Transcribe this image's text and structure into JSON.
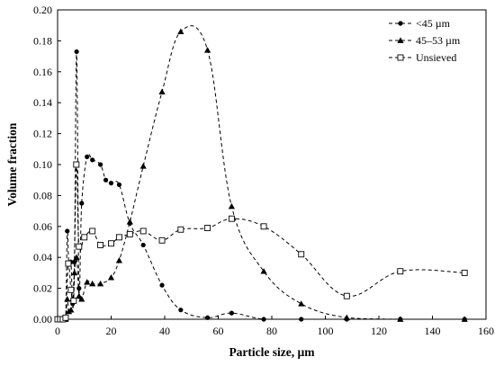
{
  "chart_data": {
    "type": "line",
    "xlabel": "Particle size, µm",
    "ylabel": "Volume fraction",
    "xlim": [
      0,
      160
    ],
    "ylim": [
      0,
      0.2
    ],
    "xticks": [
      0,
      20,
      40,
      60,
      80,
      100,
      120,
      140,
      160
    ],
    "yticks": [
      0.0,
      0.02,
      0.04,
      0.06,
      0.08,
      0.1,
      0.12,
      0.14,
      0.16,
      0.18,
      0.2
    ],
    "xtick_labels": [
      "0",
      "20",
      "40",
      "60",
      "80",
      "100",
      "120",
      "140",
      "160"
    ],
    "ytick_labels": [
      "0.00",
      "0.02",
      "0.04",
      "0.06",
      "0.08",
      "0.10",
      "0.12",
      "0.14",
      "0.16",
      "0.18",
      "0.20"
    ],
    "legend_position": "top-right",
    "series": [
      {
        "name": "<45 µm",
        "marker": "circle",
        "x": [
          0,
          1,
          2,
          3,
          3.6,
          4.2,
          5,
          5.6,
          6.3,
          7.1,
          8,
          9,
          11,
          13,
          16,
          18,
          20,
          23,
          27,
          32,
          39,
          46,
          56,
          65,
          77,
          91,
          108,
          128,
          152
        ],
        "y": [
          0,
          0,
          0,
          0,
          0.057,
          0.036,
          0.037,
          0.01,
          0.037,
          0.173,
          0.02,
          0.075,
          0.105,
          0.103,
          0.1,
          0.09,
          0.088,
          0.087,
          0.062,
          0.048,
          0.022,
          0.006,
          0.001,
          0.004,
          0,
          0,
          0,
          0,
          0
        ]
      },
      {
        "name": "45–53 µm",
        "marker": "triangle",
        "x": [
          0,
          1,
          2,
          3,
          3.6,
          4.2,
          5,
          5.6,
          6.3,
          7.1,
          8,
          9,
          11,
          13,
          16,
          20,
          23,
          27,
          32,
          39,
          46,
          56,
          65,
          77,
          91,
          108,
          128,
          152
        ],
        "y": [
          0,
          0,
          0,
          0,
          0.013,
          0.005,
          0.006,
          0.013,
          0.03,
          0.04,
          0.015,
          0.013,
          0.024,
          0.023,
          0.023,
          0.027,
          0.038,
          0.063,
          0.099,
          0.147,
          0.186,
          0.174,
          0.073,
          0.031,
          0.01,
          0.001,
          0,
          0
        ]
      },
      {
        "name": "Unsieved",
        "marker": "square",
        "x": [
          0,
          1,
          2,
          3,
          4,
          5,
          6,
          7,
          8,
          10,
          13,
          16,
          20,
          23,
          27,
          32,
          39,
          46,
          56,
          65,
          77,
          91,
          108,
          128,
          152
        ],
        "y": [
          0,
          0,
          0,
          0.001,
          0.036,
          0.019,
          0.012,
          0.1,
          0.047,
          0.053,
          0.057,
          0.048,
          0.049,
          0.053,
          0.055,
          0.057,
          0.051,
          0.058,
          0.059,
          0.065,
          0.06,
          0.042,
          0.015,
          0.031,
          0.03
        ]
      }
    ]
  }
}
